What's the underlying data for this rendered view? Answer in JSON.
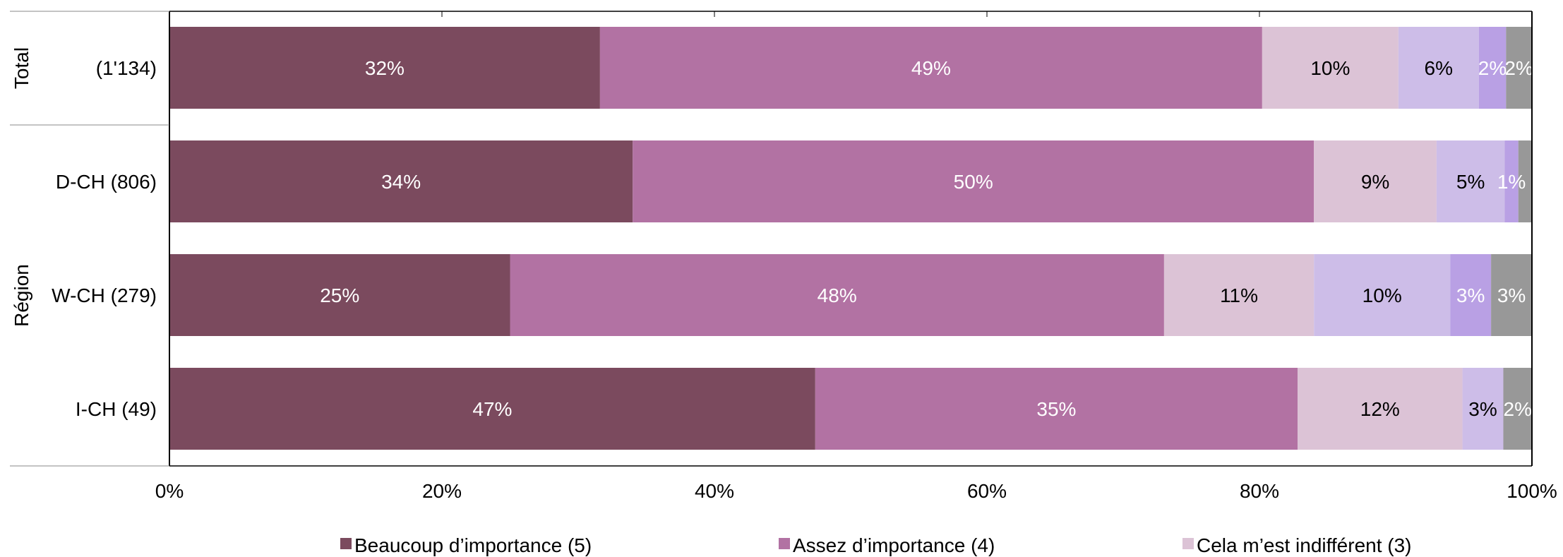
{
  "chart_data": {
    "type": "bar",
    "orientation": "horizontal",
    "stacked": true,
    "categories": [
      "(1'134)",
      "D-CH (806)",
      "W-CH (279)",
      "I-CH (49)"
    ],
    "groups": [
      {
        "label": "Total",
        "categories": [
          "(1'134)"
        ]
      },
      {
        "label": "Région",
        "categories": [
          "D-CH (806)",
          "W-CH (279)",
          "I-CH (49)"
        ]
      }
    ],
    "series": [
      {
        "name": "Beaucoup d’importance (5)",
        "color": "#7b4a5e",
        "label_color": "#ffffff",
        "values": [
          31.6,
          34.0,
          25.0,
          47.4
        ],
        "labels": [
          "32%",
          "34%",
          "25%",
          "47%"
        ]
      },
      {
        "name": "Assez d’importance (4)",
        "color": "#b272a3",
        "label_color": "#ffffff",
        "values": [
          48.6,
          50.0,
          48.0,
          35.4
        ],
        "labels": [
          "49%",
          "50%",
          "48%",
          "35%"
        ]
      },
      {
        "name": "Cela m’est indifférent (3)",
        "color": "#dcc3d6",
        "label_color": "#000000",
        "values": [
          10.0,
          9.0,
          11.0,
          12.1
        ],
        "labels": [
          "10%",
          "9%",
          "11%",
          "12%"
        ]
      },
      {
        "name": "",
        "color": "#cdbde8",
        "label_color": "#000000",
        "values": [
          5.9,
          5.0,
          10.0,
          3.0
        ],
        "labels": [
          "6%",
          "5%",
          "10%",
          "3%"
        ]
      },
      {
        "name": "",
        "color": "#b9a0e4",
        "label_color": "#ffffff",
        "values": [
          2.0,
          1.0,
          3.0,
          0.0
        ],
        "labels": [
          "2%",
          "1%",
          "3%",
          ""
        ]
      },
      {
        "name": "",
        "color": "#989898",
        "label_color": "#ffffff",
        "values": [
          1.9,
          1.0,
          3.0,
          2.1
        ],
        "labels": [
          "2%",
          "",
          "3%",
          "2%"
        ]
      }
    ],
    "xaxis": {
      "ticks": [
        0,
        20,
        40,
        60,
        80,
        100
      ],
      "tick_labels": [
        "0%",
        "20%",
        "40%",
        "60%",
        "80%",
        "100%"
      ],
      "range": [
        0,
        100
      ]
    },
    "grid": false,
    "legend": {
      "position": "bottom"
    }
  }
}
